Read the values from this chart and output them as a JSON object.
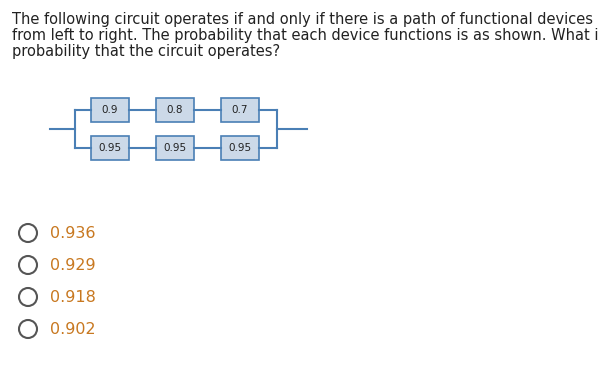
{
  "question_line1": "The following circuit operates if and only if there is a path of functional devices",
  "question_line2": "from left to right. The probability that each device functions is as shown. What is the",
  "question_line3": "probability that the circuit operates?",
  "top_row": [
    "0.9",
    "0.8",
    "0.7"
  ],
  "bottom_row": [
    "0.95",
    "0.95",
    "0.95"
  ],
  "options": [
    "0.936",
    "0.929",
    "0.918",
    "0.902"
  ],
  "box_facecolor": "#ccd9e8",
  "box_edgecolor": "#4a7fb5",
  "line_color": "#4a7fb5",
  "text_color": "#222222",
  "option_text_color": "#c87820",
  "circle_color": "#555555",
  "bg_color": "#ffffff",
  "font_size_question": 10.5,
  "font_size_box": 7.5,
  "font_size_options": 11.5
}
